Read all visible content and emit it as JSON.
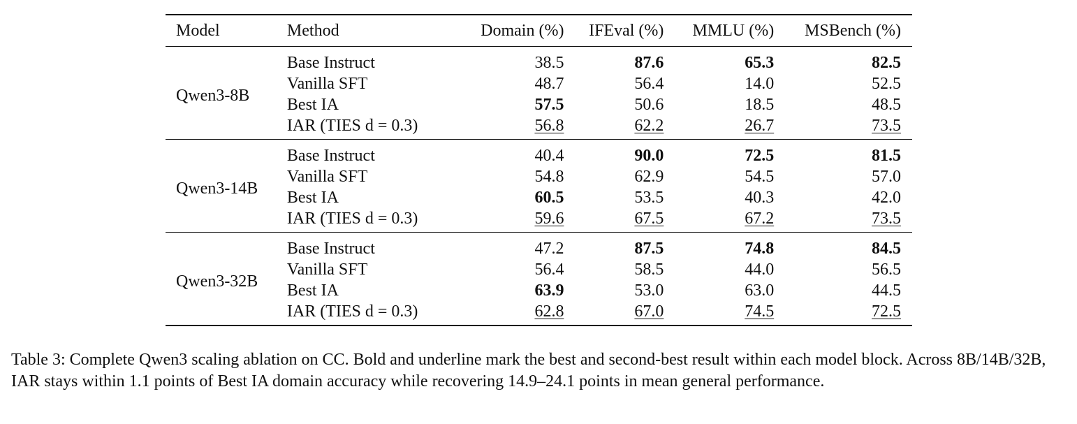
{
  "table": {
    "headers": {
      "model": "Model",
      "method": "Method",
      "domain": "Domain (%)",
      "ifeval": "IFEval (%)",
      "mmlu": "MMLU (%)",
      "msbench": "MSBench (%)"
    },
    "blocks": [
      {
        "model": "Qwen3-8B",
        "rows": [
          {
            "method": "Base Instruct",
            "domain": "38.5",
            "ifeval": "87.6",
            "mmlu": "65.3",
            "msbench": "82.5"
          },
          {
            "method": "Vanilla SFT",
            "domain": "48.7",
            "ifeval": "56.4",
            "mmlu": "14.0",
            "msbench": "52.5"
          },
          {
            "method": "Best IA",
            "domain": "57.5",
            "ifeval": "50.6",
            "mmlu": "18.5",
            "msbench": "48.5"
          },
          {
            "method": "IAR (TIES d = 0.3)",
            "domain": "56.8",
            "ifeval": "62.2",
            "mmlu": "26.7",
            "msbench": "73.5"
          }
        ]
      },
      {
        "model": "Qwen3-14B",
        "rows": [
          {
            "method": "Base Instruct",
            "domain": "40.4",
            "ifeval": "90.0",
            "mmlu": "72.5",
            "msbench": "81.5"
          },
          {
            "method": "Vanilla SFT",
            "domain": "54.8",
            "ifeval": "62.9",
            "mmlu": "54.5",
            "msbench": "57.0"
          },
          {
            "method": "Best IA",
            "domain": "60.5",
            "ifeval": "53.5",
            "mmlu": "40.3",
            "msbench": "42.0"
          },
          {
            "method": "IAR (TIES d = 0.3)",
            "domain": "59.6",
            "ifeval": "67.5",
            "mmlu": "67.2",
            "msbench": "73.5"
          }
        ]
      },
      {
        "model": "Qwen3-32B",
        "rows": [
          {
            "method": "Base Instruct",
            "domain": "47.2",
            "ifeval": "87.5",
            "mmlu": "74.8",
            "msbench": "84.5"
          },
          {
            "method": "Vanilla SFT",
            "domain": "56.4",
            "ifeval": "58.5",
            "mmlu": "44.0",
            "msbench": "56.5"
          },
          {
            "method": "Best IA",
            "domain": "63.9",
            "ifeval": "53.0",
            "mmlu": "63.0",
            "msbench": "44.5"
          },
          {
            "method": "IAR (TIES d = 0.3)",
            "domain": "62.8",
            "ifeval": "67.0",
            "mmlu": "74.5",
            "msbench": "72.5"
          }
        ]
      }
    ]
  },
  "caption": "Table 3: Complete Qwen3 scaling ablation on CC. Bold and underline mark the best and second-best result within each model block. Across 8B/14B/32B, IAR stays within 1.1 points of Best IA domain accuracy while recovering 14.9–24.1 points in mean general performance."
}
